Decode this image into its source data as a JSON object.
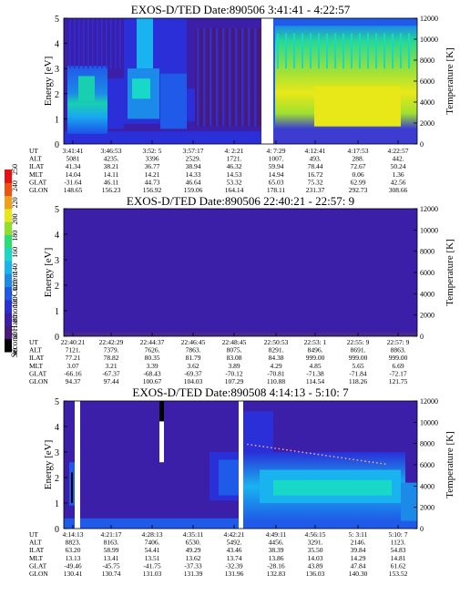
{
  "colorbar": {
    "label": "Second Harmonic Current",
    "ticks": [
      "40",
      "60",
      "80",
      "100",
      "120",
      "140",
      "160",
      "180",
      "200",
      "220",
      "240",
      "250"
    ],
    "colors": [
      "#000000",
      "#4a1a78",
      "#3c1fa8",
      "#2a2fd8",
      "#1f5ae8",
      "#1c8ae8",
      "#19b4f0",
      "#18d8c8",
      "#28e070",
      "#8ee028",
      "#e8e818",
      "#f0a018",
      "#f05010",
      "#e81010"
    ]
  },
  "panels": [
    {
      "title": "EXOS-D/TED   Date:890506  3:41:41 - 4:22:57",
      "y_label": "Energy [eV]",
      "y2_label": "Temperature [K]",
      "y_ticks": [
        "0",
        "1",
        "2",
        "3",
        "4",
        "5"
      ],
      "y2_ticks": [
        "0",
        "2000",
        "4000",
        "6000",
        "8000",
        "10000",
        "12000"
      ],
      "table": {
        "row_labels": [
          "UT",
          "ALT",
          "ILAT",
          "MLT",
          "GLAT",
          "GLON"
        ],
        "columns": [
          [
            "3:41:41",
            "5081",
            "41.34",
            "14.04",
            "-31.64",
            "148.65"
          ],
          [
            "3:46:53",
            "4235.",
            "38.21",
            "14.11",
            "46.11",
            "156.23"
          ],
          [
            "3:52: 5",
            "3396",
            "36.77",
            "14.21",
            "44.73",
            "156.92"
          ],
          [
            "3:57:17",
            "2529.",
            "38.94",
            "14.33",
            "46.64",
            "159.06"
          ],
          [
            "4: 2:21",
            "1721.",
            "46.32",
            "14.53",
            "53.32",
            "164.14"
          ],
          [
            "4: 7:29",
            "1007.",
            "59.94",
            "14.94",
            "65.03",
            "178.11"
          ],
          [
            "4:12:41",
            "493.",
            "78.44",
            "16.72",
            "75.32",
            "231.37"
          ],
          [
            "4:17:53",
            "288.",
            "72.67",
            "0.06",
            "62.99",
            "292.73"
          ],
          [
            "4:22:57",
            "442.",
            "50.24",
            "1.36",
            "42.56",
            "308.66"
          ]
        ]
      }
    },
    {
      "title": "EXOS-D/TED   Date:890506  22:40:21 - 22:57: 9",
      "y_label": "Energy [eV]",
      "y2_label": "Temperature [K]",
      "y_ticks": [
        "0",
        "1",
        "2",
        "3",
        "4",
        "5"
      ],
      "y2_ticks": [
        "0",
        "2000",
        "4000",
        "6000",
        "8000",
        "10000",
        "12000"
      ],
      "table": {
        "row_labels": [
          "UT",
          "ALT",
          "ILAT",
          "MLT",
          "GLAT",
          "GLON"
        ],
        "columns": [
          [
            "22:40:21",
            "7121.",
            "77.21",
            "3.07",
            "-66.16",
            "94.37"
          ],
          [
            "22:42:29",
            "7379.",
            "78.82",
            "3.21",
            "-67.37",
            "97.44"
          ],
          [
            "22:44:37",
            "7626.",
            "80.35",
            "3.39",
            "-68.43",
            "100.67"
          ],
          [
            "22:46:45",
            "7863.",
            "81.79",
            "3.62",
            "-69.37",
            "104.03"
          ],
          [
            "22:48:45",
            "8075.",
            "83.08",
            "3.89",
            "-70.12",
            "107.29"
          ],
          [
            "22:50:53",
            "8291.",
            "84.38",
            "4.29",
            "-70.81",
            "110.88"
          ],
          [
            "22:53: 1",
            "8496.",
            "999.00",
            "4.85",
            "-71.38",
            "114.54"
          ],
          [
            "22:55: 9",
            "8691.",
            "999.00",
            "5.65",
            "-71.84",
            "118.26"
          ],
          [
            "22:57: 9",
            "8863.",
            "999.00",
            "6.69",
            "-72.17",
            "121.75"
          ]
        ]
      }
    },
    {
      "title": "EXOS-D/TED   Date:890508  4:14:13 - 5:10: 7",
      "y_label": "Energy [eV]",
      "y2_label": "Temperature [K]",
      "y_ticks": [
        "0",
        "1",
        "2",
        "3",
        "4",
        "5"
      ],
      "y2_ticks": [
        "0",
        "2000",
        "4000",
        "6000",
        "8000",
        "10000",
        "12000"
      ],
      "table": {
        "row_labels": [
          "UT",
          "ALT",
          "ILAT",
          "MLT",
          "GLAT",
          "GLON"
        ],
        "columns": [
          [
            "4:14:13",
            "8823.",
            "63.20",
            "13.13",
            "-49.46",
            "130.41"
          ],
          [
            "4:21:17",
            "8163.",
            "58.99",
            "13.41",
            "-45.75",
            "130.74"
          ],
          [
            "4:28:13",
            "7406.",
            "54.41",
            "13.51",
            "-41.75",
            "131.03"
          ],
          [
            "4:35:11",
            "6530.",
            "49.29",
            "13.62",
            "-37.33",
            "131.39"
          ],
          [
            "4:42:21",
            "5492.",
            "43.46",
            "13.74",
            "-32.39",
            "131.96"
          ],
          [
            "4:49:11",
            "4456.",
            "38.39",
            "13.86",
            "-28.16",
            "132.83"
          ],
          [
            "4:56:15",
            "3291.",
            "35.50",
            "14.03",
            "43.89",
            "136.03"
          ],
          [
            "5: 3:11",
            "2146.",
            "39.84",
            "14.29",
            "47.84",
            "140.30"
          ],
          [
            "5:10: 7",
            "1123.",
            "54.83",
            "14.81",
            "61.62",
            "153.52"
          ]
        ]
      }
    }
  ],
  "chart_data": [
    {
      "type": "heatmap",
      "title": "EXOS-D/TED   Date:890506  3:41:41 - 4:22:57",
      "ylabel": "Energy [eV]",
      "y2label": "Temperature [K]",
      "ylim": [
        0,
        5
      ],
      "y2lim": [
        0,
        12000
      ],
      "colorbar_label": "Second Harmonic Current",
      "colorbar_range": [
        40,
        250
      ],
      "grid": false
    },
    {
      "type": "heatmap",
      "title": "EXOS-D/TED   Date:890506  22:40:21 - 22:57: 9",
      "ylabel": "Energy [eV]",
      "y2label": "Temperature [K]",
      "ylim": [
        0,
        5
      ],
      "y2lim": [
        0,
        12000
      ],
      "grid": false
    },
    {
      "type": "heatmap",
      "title": "EXOS-D/TED   Date:890508  4:14:13 - 5:10: 7",
      "ylabel": "Energy [eV]",
      "y2label": "Temperature [K]",
      "ylim": [
        0,
        5
      ],
      "y2lim": [
        0,
        12000
      ],
      "grid": false
    }
  ]
}
